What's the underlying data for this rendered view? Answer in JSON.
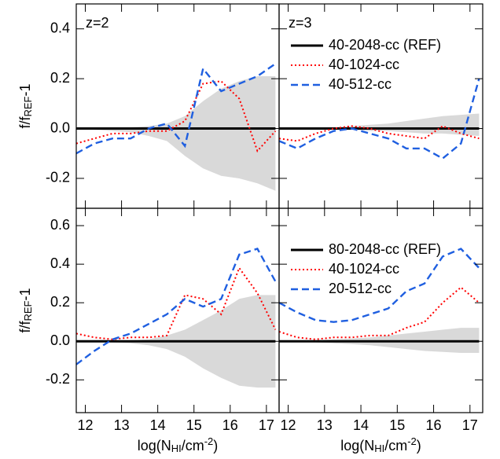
{
  "chart_data": [
    {
      "type": "line",
      "panel_label": "z=2",
      "ylabel_parts": [
        {
          "text": "f/f"
        },
        {
          "text": "REF",
          "shift": "sub"
        },
        {
          "text": "-1"
        }
      ],
      "xlim": [
        11.75,
        17.35
      ],
      "ylim": [
        -0.32,
        0.5
      ],
      "yticks": [
        0.4,
        0.2,
        {
          "value": 0,
          "label": "0.0"
        },
        -0.2
      ],
      "x": [
        11.75,
        12.25,
        12.75,
        13.25,
        13.75,
        14.25,
        14.75,
        15.25,
        15.75,
        16.25,
        16.75,
        17.25
      ],
      "band": {
        "color": "#d9d9d9",
        "upper": [
          0.0,
          0.0,
          0.0,
          0.005,
          0.01,
          0.02,
          0.05,
          0.11,
          0.16,
          0.19,
          0.21,
          0.21
        ],
        "lower": [
          0.0,
          -0.005,
          -0.01,
          -0.015,
          -0.03,
          -0.05,
          -0.11,
          -0.16,
          -0.19,
          -0.2,
          -0.22,
          -0.25
        ]
      },
      "series": [
        {
          "color": "#000000",
          "style": "solid",
          "values": [
            0,
            0,
            0,
            0,
            0,
            0,
            0,
            0,
            0,
            0,
            0,
            0
          ]
        },
        {
          "color": "#ff0000",
          "style": "dotted",
          "values": [
            -0.06,
            -0.04,
            -0.02,
            -0.02,
            -0.01,
            -0.01,
            0.03,
            0.18,
            0.19,
            0.12,
            -0.09,
            -0.01
          ]
        },
        {
          "color": "#1f5fe0",
          "style": "dashed",
          "values": [
            -0.1,
            -0.06,
            -0.04,
            -0.04,
            0.0,
            0.02,
            -0.07,
            0.24,
            0.15,
            0.18,
            0.21,
            0.26
          ]
        }
      ]
    },
    {
      "type": "line",
      "panel_label": "z=3",
      "legend": "upper right",
      "xlim": [
        11.75,
        17.35
      ],
      "ylim": [
        -0.32,
        0.5
      ],
      "x": [
        11.75,
        12.25,
        12.75,
        13.25,
        13.75,
        14.25,
        14.75,
        15.25,
        15.75,
        16.25,
        16.75,
        17.25
      ],
      "band": {
        "color": "#d9d9d9",
        "upper": [
          0.0,
          0.0,
          0.0,
          0.005,
          0.01,
          0.015,
          0.02,
          0.03,
          0.04,
          0.05,
          0.055,
          0.06
        ],
        "lower": [
          0.0,
          0.0,
          0.0,
          -0.005,
          -0.005,
          -0.01,
          -0.01,
          -0.015,
          -0.02,
          -0.02,
          -0.025,
          -0.03
        ]
      },
      "series": [
        {
          "name": "40-2048-cc (REF)",
          "color": "#000000",
          "style": "solid",
          "values": [
            0,
            0,
            0,
            0,
            0,
            0,
            0,
            0,
            0,
            0,
            0,
            0
          ]
        },
        {
          "name": "40-1024-cc",
          "color": "#ff0000",
          "style": "dotted",
          "values": [
            -0.04,
            -0.05,
            -0.02,
            0.0,
            0.01,
            0.0,
            -0.02,
            -0.03,
            -0.04,
            0.01,
            -0.02,
            -0.04
          ]
        },
        {
          "name": "40-512-cc",
          "color": "#1f5fe0",
          "style": "dashed",
          "values": [
            -0.05,
            -0.08,
            -0.04,
            -0.01,
            0.0,
            -0.02,
            -0.04,
            -0.08,
            -0.08,
            -0.12,
            -0.06,
            0.2
          ]
        }
      ]
    },
    {
      "type": "line",
      "ylabel_parts": [
        {
          "text": "f/f"
        },
        {
          "text": "REF",
          "shift": "sub"
        },
        {
          "text": "-1"
        }
      ],
      "xlabel_parts": [
        {
          "text": "log(N"
        },
        {
          "text": "HI",
          "shift": "sub"
        },
        {
          "text": "/cm"
        },
        {
          "text": "-2",
          "shift": "super"
        },
        {
          "text": ")"
        }
      ],
      "xlim": [
        11.75,
        17.35
      ],
      "ylim": [
        -0.37,
        0.69
      ],
      "xticks": [
        12,
        13,
        14,
        15,
        16,
        17
      ],
      "yticks": [
        0.6,
        0.4,
        0.2,
        {
          "value": 0,
          "label": "0.0"
        },
        -0.2
      ],
      "x": [
        11.75,
        12.25,
        12.75,
        13.25,
        13.75,
        14.25,
        14.75,
        15.25,
        15.75,
        16.25,
        16.75,
        17.25
      ],
      "band": {
        "color": "#d9d9d9",
        "upper": [
          0.0,
          0.0,
          0.0,
          0.005,
          0.01,
          0.03,
          0.06,
          0.11,
          0.16,
          0.22,
          0.24,
          0.24
        ],
        "lower": [
          0.0,
          0.0,
          -0.005,
          -0.01,
          -0.02,
          -0.04,
          -0.08,
          -0.14,
          -0.19,
          -0.23,
          -0.24,
          -0.24
        ]
      },
      "series": [
        {
          "color": "#000000",
          "style": "solid",
          "values": [
            0,
            0,
            0,
            0,
            0,
            0,
            0,
            0,
            0,
            0,
            0,
            0
          ]
        },
        {
          "color": "#ff0000",
          "style": "dotted",
          "values": [
            0.04,
            0.02,
            0.01,
            0.02,
            0.02,
            0.03,
            0.24,
            0.22,
            0.14,
            0.38,
            0.25,
            0.06
          ]
        },
        {
          "color": "#1f5fe0",
          "style": "dashed",
          "values": [
            -0.12,
            -0.05,
            0.01,
            0.04,
            0.09,
            0.14,
            0.22,
            0.18,
            0.22,
            0.45,
            0.48,
            0.31
          ]
        }
      ]
    },
    {
      "type": "line",
      "legend": "upper right",
      "xlabel_parts": [
        {
          "text": "log(N"
        },
        {
          "text": "HI",
          "shift": "sub"
        },
        {
          "text": "/cm"
        },
        {
          "text": "-2",
          "shift": "super"
        },
        {
          "text": ")"
        }
      ],
      "xlim": [
        11.75,
        17.35
      ],
      "ylim": [
        -0.37,
        0.69
      ],
      "xticks": [
        12,
        13,
        14,
        15,
        16,
        17
      ],
      "x": [
        11.75,
        12.25,
        12.75,
        13.25,
        13.75,
        14.25,
        14.75,
        15.25,
        15.75,
        16.25,
        16.75,
        17.25
      ],
      "band": {
        "color": "#d9d9d9",
        "upper": [
          0.0,
          0.0,
          0.005,
          0.01,
          0.015,
          0.02,
          0.03,
          0.04,
          0.05,
          0.06,
          0.07,
          0.07
        ],
        "lower": [
          0.0,
          0.0,
          -0.005,
          -0.01,
          -0.015,
          -0.02,
          -0.03,
          -0.04,
          -0.05,
          -0.055,
          -0.06,
          -0.06
        ]
      },
      "series": [
        {
          "name": "80-2048-cc (REF)",
          "color": "#000000",
          "style": "solid",
          "values": [
            0,
            0,
            0,
            0,
            0,
            0,
            0,
            0,
            0,
            0,
            0,
            0
          ]
        },
        {
          "name": "40-1024-cc",
          "color": "#ff0000",
          "style": "dotted",
          "values": [
            0.05,
            0.02,
            0.01,
            0.02,
            0.02,
            0.03,
            0.03,
            0.07,
            0.1,
            0.2,
            0.28,
            0.2
          ]
        },
        {
          "name": "20-512-cc",
          "color": "#1f5fe0",
          "style": "dashed",
          "values": [
            0.2,
            0.15,
            0.11,
            0.1,
            0.11,
            0.14,
            0.17,
            0.26,
            0.3,
            0.44,
            0.48,
            0.38
          ]
        }
      ]
    }
  ]
}
